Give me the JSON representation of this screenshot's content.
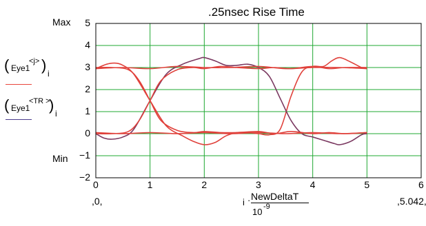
{
  "chart_data": {
    "type": "line",
    "title": ".25nsec Rise Time",
    "x_axis": {
      "ticks": [
        "0",
        "1",
        "2",
        "3",
        "4",
        "5",
        "6"
      ],
      "range": [
        0,
        6
      ],
      "range_min_label": ",0,",
      "range_max_label": ",5.042,",
      "label_numer": "NewDeltaT",
      "label_prefix": "i",
      "label_denom_base": "10",
      "label_denom_exp": "-9"
    },
    "y_axis": {
      "ticks": [
        "5",
        "4",
        "3",
        "2",
        "1",
        "0",
        "-1",
        "-2"
      ],
      "range": [
        -2,
        5
      ],
      "max_label": "Max",
      "min_label": "Min"
    },
    "grid": true,
    "legend": [
      {
        "label_main": "Eye1",
        "label_sup": "<j>",
        "label_sub": "i",
        "color": "#e8453c"
      },
      {
        "label_main": "Eye1",
        "label_sup": "<TR >",
        "label_sub": "i",
        "color": "#4b3c8c"
      }
    ],
    "colors": {
      "trace_primary": "#e0413b",
      "trace_secondary": "#7a3860",
      "grid": "#1fa832",
      "frame": "#000000"
    },
    "series": [
      {
        "x": [
          0,
          0.2,
          0.35,
          0.5,
          0.7,
          1.0,
          1.3,
          1.6,
          1.8,
          2.0,
          2.2,
          2.4,
          2.6,
          2.8,
          3.0,
          3.2,
          3.4,
          3.6,
          3.8,
          4.0,
          4.2,
          4.35,
          4.5,
          4.7,
          4.9,
          5.0
        ],
        "values": [
          2.95,
          3.15,
          3.2,
          3.1,
          2.7,
          1.5,
          0.35,
          -0.1,
          -0.35,
          -0.5,
          -0.4,
          -0.1,
          0.05,
          0.05,
          0.0,
          -0.05,
          0.2,
          1.7,
          2.8,
          3.05,
          3.05,
          3.3,
          3.45,
          3.25,
          3.0,
          2.95
        ]
      },
      {
        "x": [
          0,
          0.15,
          0.3,
          0.5,
          0.7,
          1.0,
          1.3,
          1.6,
          1.9,
          2.0,
          2.2,
          2.4,
          2.6,
          2.8,
          3.0,
          3.2,
          3.4,
          3.6,
          3.8,
          4.0,
          4.2,
          4.4,
          4.5,
          4.7,
          4.9,
          5.0
        ],
        "values": [
          0.0,
          -0.2,
          -0.25,
          -0.15,
          0.2,
          1.5,
          2.7,
          3.15,
          3.4,
          3.45,
          3.3,
          3.1,
          3.1,
          3.15,
          3.0,
          2.6,
          1.6,
          0.6,
          0.0,
          -0.15,
          -0.3,
          -0.45,
          -0.5,
          -0.35,
          -0.05,
          0.0
        ]
      },
      {
        "x": [
          0,
          0.5,
          1.0,
          1.5,
          2.0,
          2.5,
          3.0,
          3.5,
          4.0,
          4.5,
          5.0
        ],
        "values": [
          2.95,
          3.0,
          2.95,
          3.05,
          3.0,
          3.0,
          3.05,
          2.95,
          3.0,
          3.0,
          2.95
        ]
      },
      {
        "x": [
          0,
          0.5,
          1.0,
          1.5,
          2.0,
          2.5,
          3.0,
          3.5,
          4.0,
          4.5,
          5.0
        ],
        "values": [
          0.05,
          0.0,
          0.05,
          0.0,
          0.05,
          0.0,
          0.05,
          0.0,
          0.05,
          0.0,
          0.05
        ]
      },
      {
        "x": [
          0,
          0.3,
          0.6,
          0.8,
          1.0,
          1.2,
          1.5,
          1.8,
          2.0,
          2.3,
          2.6,
          3.0,
          3.3,
          3.6,
          4.0,
          4.3,
          4.6,
          5.0
        ],
        "values": [
          3.0,
          3.0,
          2.9,
          2.4,
          1.5,
          0.6,
          0.15,
          0.05,
          0.1,
          0.05,
          0.05,
          0.1,
          0.0,
          0.1,
          0.0,
          0.05,
          0.0,
          0.05
        ]
      },
      {
        "x": [
          0,
          0.3,
          0.6,
          0.8,
          1.0,
          1.2,
          1.5,
          1.8,
          2.0,
          2.3,
          2.6,
          3.0,
          3.3,
          3.6,
          4.0,
          4.3,
          4.6,
          5.0
        ],
        "values": [
          0.0,
          0.0,
          0.1,
          0.6,
          1.5,
          2.4,
          2.9,
          3.0,
          2.95,
          3.05,
          3.0,
          2.95,
          3.0,
          2.95,
          3.05,
          2.95,
          3.0,
          3.0
        ]
      }
    ]
  }
}
